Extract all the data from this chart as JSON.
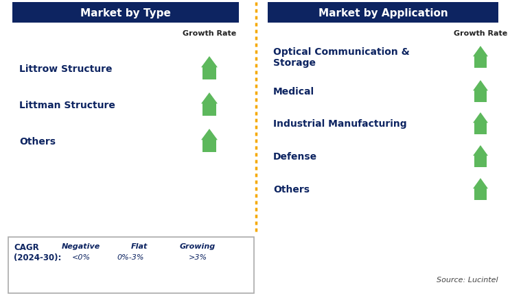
{
  "title_left": "Market by Type",
  "title_right": "Market by Application",
  "header_color": "#0D2461",
  "title_text_color": "#FFFFFF",
  "left_items": [
    "Littrow Structure",
    "Littman Structure",
    "Others"
  ],
  "right_items": [
    "Optical Communication &\nStorage",
    "Medical",
    "Industrial Manufacturing",
    "Defense",
    "Others"
  ],
  "growth_rate_label": "Growth Rate",
  "arrow_up_color": "#5DB85C",
  "arrow_flat_color": "#F5A800",
  "arrow_down_color": "#CC0000",
  "item_text_color": "#0D2461",
  "legend_cagr": "CAGR\n(2024-30):",
  "legend_neg_label": "Negative",
  "legend_neg_val": "<0%",
  "legend_flat_label": "Flat",
  "legend_flat_val": "0%-3%",
  "legend_grow_label": "Growing",
  "legend_grow_val": ">3%",
  "source_text": "Source: Lucintel",
  "divider_color": "#F5A800",
  "bg_color": "#FFFFFF",
  "legend_border_color": "#AAAAAA"
}
